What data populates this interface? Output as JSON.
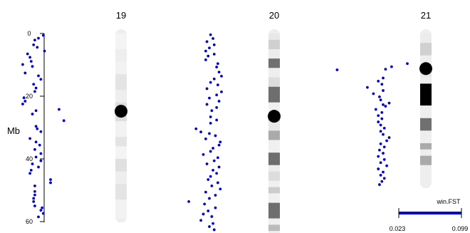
{
  "chart_data": {
    "type": "scatter",
    "y_axis": {
      "label": "Mb",
      "ticks": [
        0,
        20,
        40,
        60
      ],
      "range": [
        0,
        60
      ],
      "reversed": true
    },
    "chromosomes": [
      {
        "name": "19",
        "length": 59,
        "centromere": 24.8,
        "bands": [
          {
            "start": 0,
            "end": 5,
            "fill": "#f4f4f4"
          },
          {
            "start": 5,
            "end": 9,
            "fill": "#eeeeee"
          },
          {
            "start": 9,
            "end": 13,
            "fill": "#f2f2f2"
          },
          {
            "start": 13,
            "end": 18,
            "fill": "#e4e4e4"
          },
          {
            "start": 18,
            "end": 22,
            "fill": "#eeeeee"
          },
          {
            "start": 22,
            "end": 28,
            "fill": "#dddddd"
          },
          {
            "start": 28,
            "end": 33,
            "fill": "#f2f2f2"
          },
          {
            "start": 33,
            "end": 36,
            "fill": "#e4e4e4"
          },
          {
            "start": 36,
            "end": 40,
            "fill": "#f4f4f4"
          },
          {
            "start": 40,
            "end": 44,
            "fill": "#e0e0e0"
          },
          {
            "start": 44,
            "end": 48,
            "fill": "#eeeeee"
          },
          {
            "start": 48,
            "end": 53,
            "fill": "#e4e4e4"
          },
          {
            "start": 53,
            "end": 59,
            "fill": "#f2f2f2"
          }
        ],
        "points": [
          {
            "fst": 0.04,
            "mb": 2.1
          },
          {
            "fst": 0.047,
            "mb": 0.6
          },
          {
            "fst": 0.043,
            "mb": 1.5
          },
          {
            "fst": 0.039,
            "mb": 3.6
          },
          {
            "fst": 0.042,
            "mb": 4.4
          },
          {
            "fst": 0.048,
            "mb": 5.6
          },
          {
            "fst": 0.034,
            "mb": 6.5
          },
          {
            "fst": 0.036,
            "mb": 7.6
          },
          {
            "fst": 0.037,
            "mb": 8.9
          },
          {
            "fst": 0.03,
            "mb": 9.9
          },
          {
            "fst": 0.038,
            "mb": 10.5
          },
          {
            "fst": 0.032,
            "mb": 12.6
          },
          {
            "fst": 0.043,
            "mb": 13.5
          },
          {
            "fst": 0.045,
            "mb": 14.6
          },
          {
            "fst": 0.039,
            "mb": 16.2
          },
          {
            "fst": 0.041,
            "mb": 17.4
          },
          {
            "fst": 0.04,
            "mb": 18.5
          },
          {
            "fst": 0.031,
            "mb": 20.5
          },
          {
            "fst": 0.032,
            "mb": 21.6
          },
          {
            "fst": 0.03,
            "mb": 22.5
          },
          {
            "fst": 0.06,
            "mb": 24.2
          },
          {
            "fst": 0.041,
            "mb": 24.6
          },
          {
            "fst": 0.038,
            "mb": 25.7
          },
          {
            "fst": 0.064,
            "mb": 27.8
          },
          {
            "fst": 0.041,
            "mb": 29.6
          },
          {
            "fst": 0.042,
            "mb": 30.4
          },
          {
            "fst": 0.045,
            "mb": 31.3
          },
          {
            "fst": 0.036,
            "mb": 33.5
          },
          {
            "fst": 0.041,
            "mb": 34.6
          },
          {
            "fst": 0.044,
            "mb": 35.6
          },
          {
            "fst": 0.04,
            "mb": 37.0
          },
          {
            "fst": 0.045,
            "mb": 38.3
          },
          {
            "fst": 0.041,
            "mb": 39.4
          },
          {
            "fst": 0.045,
            "mb": 40.6
          },
          {
            "fst": 0.038,
            "mb": 41.6
          },
          {
            "fst": 0.043,
            "mb": 42.6
          },
          {
            "fst": 0.037,
            "mb": 43.6
          },
          {
            "fst": 0.036,
            "mb": 44.6
          },
          {
            "fst": 0.053,
            "mb": 46.6
          },
          {
            "fst": 0.053,
            "mb": 47.6
          },
          {
            "fst": 0.04,
            "mb": 48.6
          },
          {
            "fst": 0.04,
            "mb": 50.4
          },
          {
            "fst": 0.04,
            "mb": 51.5
          },
          {
            "fst": 0.039,
            "mb": 52.6
          },
          {
            "fst": 0.039,
            "mb": 53.6
          },
          {
            "fst": 0.04,
            "mb": 55.0
          },
          {
            "fst": 0.045,
            "mb": 56.4
          },
          {
            "fst": 0.047,
            "mb": 57.4
          },
          {
            "fst": 0.043,
            "mb": 58.5
          },
          {
            "fst": 0.046,
            "mb": 55.6
          }
        ]
      },
      {
        "name": "20",
        "length": 64,
        "centromere": 26.4,
        "bands": [
          {
            "start": 0,
            "end": 2,
            "fill": "#e8e8e8"
          },
          {
            "start": 2,
            "end": 5,
            "fill": "#d0d0d0"
          },
          {
            "start": 5,
            "end": 8,
            "fill": "#ececec"
          },
          {
            "start": 8,
            "end": 11,
            "fill": "#707070"
          },
          {
            "start": 11,
            "end": 14,
            "fill": "#eeeeee"
          },
          {
            "start": 14,
            "end": 17,
            "fill": "#dddddd"
          },
          {
            "start": 17,
            "end": 22,
            "fill": "#6e6e6e"
          },
          {
            "start": 22,
            "end": 26,
            "fill": "#f0f0f0"
          },
          {
            "start": 26,
            "end": 28,
            "fill": "#cccccc"
          },
          {
            "start": 28,
            "end": 31,
            "fill": "#e8e8e8"
          },
          {
            "start": 31,
            "end": 34,
            "fill": "#aaaaaa"
          },
          {
            "start": 34,
            "end": 38,
            "fill": "#f0f0f0"
          },
          {
            "start": 38,
            "end": 42,
            "fill": "#6e6e6e"
          },
          {
            "start": 42,
            "end": 44,
            "fill": "#eeeeee"
          },
          {
            "start": 44,
            "end": 47,
            "fill": "#dddddd"
          },
          {
            "start": 47,
            "end": 49,
            "fill": "#f0f0f0"
          },
          {
            "start": 49,
            "end": 51,
            "fill": "#cccccc"
          },
          {
            "start": 51,
            "end": 54,
            "fill": "#f0f0f0"
          },
          {
            "start": 54,
            "end": 59,
            "fill": "#6e6e6e"
          },
          {
            "start": 59,
            "end": 61,
            "fill": "#eeeeee"
          },
          {
            "start": 61,
            "end": 63,
            "fill": "#bbbbbb"
          },
          {
            "start": 63,
            "end": 64,
            "fill": "#eeeeee"
          }
        ],
        "points": [
          {
            "fst": 0.044,
            "mb": 0.4
          },
          {
            "fst": 0.046,
            "mb": 1.6
          },
          {
            "fst": 0.041,
            "mb": 2.6
          },
          {
            "fst": 0.047,
            "mb": 3.6
          },
          {
            "fst": 0.043,
            "mb": 4.6
          },
          {
            "fst": 0.04,
            "mb": 5.6
          },
          {
            "fst": 0.047,
            "mb": 6.6
          },
          {
            "fst": 0.042,
            "mb": 7.2
          },
          {
            "fst": 0.04,
            "mb": 8.4
          },
          {
            "fst": 0.05,
            "mb": 9.6
          },
          {
            "fst": 0.049,
            "mb": 10.7
          },
          {
            "fst": 0.051,
            "mb": 12.3
          },
          {
            "fst": 0.053,
            "mb": 13.6
          },
          {
            "fst": 0.047,
            "mb": 14.5
          },
          {
            "fst": 0.044,
            "mb": 15.6
          },
          {
            "fst": 0.05,
            "mb": 16.4
          },
          {
            "fst": 0.041,
            "mb": 17.6
          },
          {
            "fst": 0.053,
            "mb": 18.6
          },
          {
            "fst": 0.049,
            "mb": 19.6
          },
          {
            "fst": 0.043,
            "mb": 20.6
          },
          {
            "fst": 0.051,
            "mb": 21.6
          },
          {
            "fst": 0.041,
            "mb": 22.6
          },
          {
            "fst": 0.049,
            "mb": 23.6
          },
          {
            "fst": 0.045,
            "mb": 24.6
          },
          {
            "fst": 0.044,
            "mb": 26.6
          },
          {
            "fst": 0.049,
            "mb": 27.6
          },
          {
            "fst": 0.044,
            "mb": 28.6
          },
          {
            "fst": 0.032,
            "mb": 30.4
          },
          {
            "fst": 0.036,
            "mb": 31.4
          },
          {
            "fst": 0.043,
            "mb": 31.9
          },
          {
            "fst": 0.048,
            "mb": 32.6
          },
          {
            "fst": 0.04,
            "mb": 33.6
          },
          {
            "fst": 0.052,
            "mb": 34.6
          },
          {
            "fst": 0.051,
            "mb": 35.6
          },
          {
            "fst": 0.046,
            "mb": 36.6
          },
          {
            "fst": 0.044,
            "mb": 37.6
          },
          {
            "fst": 0.038,
            "mb": 38.6
          },
          {
            "fst": 0.05,
            "mb": 39.6
          },
          {
            "fst": 0.047,
            "mb": 40.6
          },
          {
            "fst": 0.041,
            "mb": 41.6
          },
          {
            "fst": 0.051,
            "mb": 42.6
          },
          {
            "fst": 0.046,
            "mb": 43.6
          },
          {
            "fst": 0.049,
            "mb": 44.6
          },
          {
            "fst": 0.044,
            "mb": 45.6
          },
          {
            "fst": 0.042,
            "mb": 46.6
          },
          {
            "fst": 0.05,
            "mb": 47.6
          },
          {
            "fst": 0.045,
            "mb": 48.6
          },
          {
            "fst": 0.052,
            "mb": 49.6
          },
          {
            "fst": 0.04,
            "mb": 50.6
          },
          {
            "fst": 0.048,
            "mb": 51.6
          },
          {
            "fst": 0.043,
            "mb": 52.6
          },
          {
            "fst": 0.026,
            "mb": 53.6
          },
          {
            "fst": 0.039,
            "mb": 54.4
          },
          {
            "fst": 0.048,
            "mb": 55.6
          },
          {
            "fst": 0.042,
            "mb": 56.6
          },
          {
            "fst": 0.038,
            "mb": 57.6
          },
          {
            "fst": 0.045,
            "mb": 58.4
          },
          {
            "fst": 0.036,
            "mb": 59.6
          },
          {
            "fst": 0.046,
            "mb": 60.6
          },
          {
            "fst": 0.043,
            "mb": 61.6
          },
          {
            "fst": 0.047,
            "mb": 62.6
          }
        ]
      },
      {
        "name": "21",
        "length": 48,
        "centromere": 11.2,
        "bands": [
          {
            "start": 0,
            "end": 3,
            "fill": "#ececec"
          },
          {
            "start": 3,
            "end": 7,
            "fill": "#d0d0d0"
          },
          {
            "start": 7,
            "end": 10,
            "fill": "#eeeeee"
          },
          {
            "start": 10,
            "end": 12,
            "fill": "#e2e2e2"
          },
          {
            "start": 12,
            "end": 14,
            "fill": "#e8e8e8"
          },
          {
            "start": 14,
            "end": 16,
            "fill": "#eeeeee"
          },
          {
            "start": 16,
            "end": 23,
            "fill": "#000000"
          },
          {
            "start": 23,
            "end": 27,
            "fill": "#eeeeee"
          },
          {
            "start": 27,
            "end": 31,
            "fill": "#707070"
          },
          {
            "start": 31,
            "end": 35,
            "fill": "#eeeeee"
          },
          {
            "start": 35,
            "end": 37,
            "fill": "#aaaaaa"
          },
          {
            "start": 37,
            "end": 39,
            "fill": "#eeeeee"
          },
          {
            "start": 39,
            "end": 42,
            "fill": "#aaaaaa"
          },
          {
            "start": 42,
            "end": 48,
            "fill": "#eeeeee"
          }
        ],
        "points": [
          {
            "fst": 0.025,
            "mb": 11.6
          },
          {
            "fst": 0.083,
            "mb": 9.6
          },
          {
            "fst": 0.07,
            "mb": 10.6
          },
          {
            "fst": 0.065,
            "mb": 11.4
          },
          {
            "fst": 0.063,
            "mb": 14.2
          },
          {
            "fst": 0.059,
            "mb": 15.2
          },
          {
            "fst": 0.062,
            "mb": 16.2
          },
          {
            "fst": 0.05,
            "mb": 17.2
          },
          {
            "fst": 0.063,
            "mb": 18.2
          },
          {
            "fst": 0.055,
            "mb": 19.2
          },
          {
            "fst": 0.06,
            "mb": 20.2
          },
          {
            "fst": 0.061,
            "mb": 21.2
          },
          {
            "fst": 0.068,
            "mb": 22.2
          },
          {
            "fst": 0.063,
            "mb": 22.7
          },
          {
            "fst": 0.065,
            "mb": 23.2
          },
          {
            "fst": 0.057,
            "mb": 24.2
          },
          {
            "fst": 0.062,
            "mb": 25.2
          },
          {
            "fst": 0.059,
            "mb": 26.2
          },
          {
            "fst": 0.062,
            "mb": 27.2
          },
          {
            "fst": 0.059,
            "mb": 28.2
          },
          {
            "fst": 0.061,
            "mb": 29.2
          },
          {
            "fst": 0.064,
            "mb": 30.2
          },
          {
            "fst": 0.061,
            "mb": 31.2
          },
          {
            "fst": 0.063,
            "mb": 32.2
          },
          {
            "fst": 0.068,
            "mb": 33.2
          },
          {
            "fst": 0.066,
            "mb": 34.2
          },
          {
            "fst": 0.061,
            "mb": 35.2
          },
          {
            "fst": 0.064,
            "mb": 36.2
          },
          {
            "fst": 0.06,
            "mb": 37.2
          },
          {
            "fst": 0.063,
            "mb": 38.2
          },
          {
            "fst": 0.059,
            "mb": 39.2
          },
          {
            "fst": 0.064,
            "mb": 40.2
          },
          {
            "fst": 0.061,
            "mb": 41.2
          },
          {
            "fst": 0.066,
            "mb": 42.2
          },
          {
            "fst": 0.059,
            "mb": 43.2
          },
          {
            "fst": 0.063,
            "mb": 44.2
          },
          {
            "fst": 0.061,
            "mb": 45.2
          },
          {
            "fst": 0.064,
            "mb": 46.2
          },
          {
            "fst": 0.062,
            "mb": 47.2
          },
          {
            "fst": 0.06,
            "mb": 48.2
          }
        ]
      }
    ],
    "legend": {
      "title": "win.FST",
      "min_label": "0.023",
      "max_label": "0.099",
      "min": 0.023,
      "max": 0.099,
      "color": "#0000dd"
    },
    "colors": {
      "points": "#0000cc",
      "centromere": "#000000",
      "axis": "#000000"
    }
  }
}
